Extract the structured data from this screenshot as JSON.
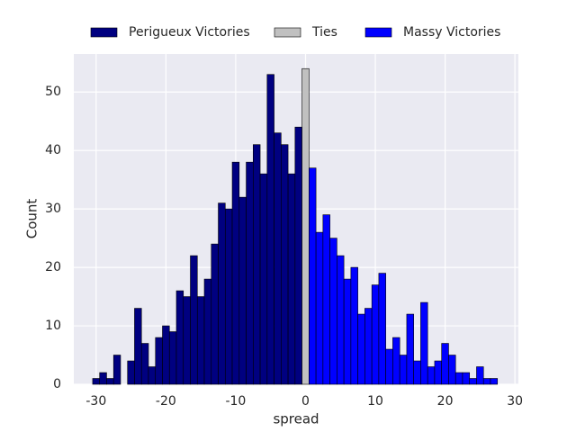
{
  "chart_data": {
    "type": "histogram",
    "x_label": "spread",
    "y_label": "Count",
    "xlim": [
      -33.2,
      30.5
    ],
    "ylim": [
      0,
      56.5
    ],
    "xticks": [
      -30,
      -20,
      -10,
      0,
      10,
      20,
      30
    ],
    "yticks": [
      0,
      10,
      20,
      30,
      40,
      50
    ],
    "grid": true,
    "legend": "top",
    "series": [
      {
        "name": "Perigueux Victories",
        "color": "#000080",
        "bins": [
          -30.5,
          -29.5,
          -28.5,
          -27.5,
          -26.5,
          -25.5,
          -24.5,
          -23.5,
          -22.5,
          -21.5,
          -20.5,
          -19.5,
          -18.5,
          -17.5,
          -16.5,
          -15.5,
          -14.5,
          -13.5,
          -12.5,
          -11.5,
          -10.5,
          -9.5,
          -8.5,
          -7.5,
          -6.5,
          -5.5,
          -4.5,
          -3.5,
          -2.5,
          -1.5,
          -0.5
        ],
        "values": [
          1,
          2,
          1,
          5,
          0,
          4,
          13,
          7,
          3,
          8,
          10,
          9,
          16,
          15,
          22,
          15,
          18,
          24,
          31,
          30,
          38,
          32,
          38,
          41,
          36,
          53,
          43,
          41,
          36,
          44
        ]
      },
      {
        "name": "Ties",
        "color": "#c0c0c0",
        "bins": [
          -0.5,
          0.5
        ],
        "values": [
          54
        ]
      },
      {
        "name": "Massy Victories",
        "color": "#0000ff",
        "bins": [
          0.5,
          1.5,
          2.5,
          3.5,
          4.5,
          5.5,
          6.5,
          7.5,
          8.5,
          9.5,
          10.5,
          11.5,
          12.5,
          13.5,
          14.5,
          15.5,
          16.5,
          17.5,
          18.5,
          19.5,
          20.5,
          21.5,
          22.5,
          23.5,
          24.5,
          25.5,
          26.5,
          27.5
        ],
        "values": [
          37,
          26,
          29,
          25,
          22,
          18,
          20,
          12,
          13,
          17,
          19,
          6,
          8,
          5,
          12,
          4,
          14,
          3,
          4,
          7,
          5,
          2,
          2,
          1,
          3,
          1,
          1
        ]
      }
    ]
  }
}
